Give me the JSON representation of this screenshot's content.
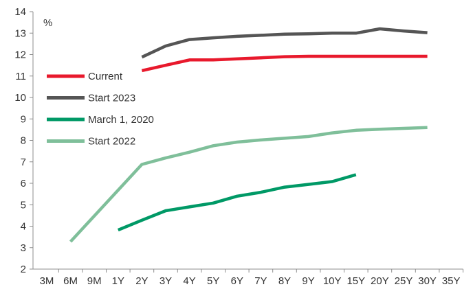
{
  "chart_data": {
    "type": "line",
    "title": "",
    "xlabel": "",
    "ylabel": "%",
    "ylim": [
      2,
      14
    ],
    "y_ticks": [
      2,
      3,
      4,
      5,
      6,
      7,
      8,
      9,
      10,
      11,
      12,
      13,
      14
    ],
    "categories": [
      "3M",
      "6M",
      "9M",
      "1Y",
      "2Y",
      "3Y",
      "4Y",
      "5Y",
      "6Y",
      "7Y",
      "8Y",
      "9Y",
      "10Y",
      "15Y",
      "20Y",
      "25Y",
      "30Y",
      "35Y"
    ],
    "grid": false,
    "legend_position": "left",
    "series": [
      {
        "name": "Current",
        "color": "#e8192c",
        "points": [
          [
            "2Y",
            11.25
          ],
          [
            "3Y",
            11.5
          ],
          [
            "4Y",
            11.75
          ],
          [
            "5Y",
            11.75
          ],
          [
            "6Y",
            11.8
          ],
          [
            "7Y",
            11.85
          ],
          [
            "8Y",
            11.9
          ],
          [
            "9Y",
            11.92
          ],
          [
            "10Y",
            11.92
          ],
          [
            "15Y",
            11.92
          ],
          [
            "20Y",
            11.92
          ],
          [
            "25Y",
            11.92
          ],
          [
            "30Y",
            11.92
          ]
        ]
      },
      {
        "name": "Start 2023",
        "color": "#555555",
        "points": [
          [
            "2Y",
            11.88
          ],
          [
            "3Y",
            12.4
          ],
          [
            "4Y",
            12.7
          ],
          [
            "5Y",
            12.78
          ],
          [
            "6Y",
            12.85
          ],
          [
            "7Y",
            12.9
          ],
          [
            "8Y",
            12.95
          ],
          [
            "9Y",
            12.97
          ],
          [
            "10Y",
            13.0
          ],
          [
            "15Y",
            13.0
          ],
          [
            "20Y",
            13.2
          ],
          [
            "25Y",
            13.1
          ],
          [
            "30Y",
            13.02
          ]
        ]
      },
      {
        "name": "March 1, 2020",
        "color": "#009966",
        "points": [
          [
            "1Y",
            3.82
          ],
          [
            "2Y",
            4.28
          ],
          [
            "3Y",
            4.72
          ],
          [
            "4Y",
            4.9
          ],
          [
            "5Y",
            5.08
          ],
          [
            "6Y",
            5.4
          ],
          [
            "7Y",
            5.58
          ],
          [
            "8Y",
            5.82
          ],
          [
            "9Y",
            5.95
          ],
          [
            "10Y",
            6.08
          ],
          [
            "15Y",
            6.4
          ]
        ]
      },
      {
        "name": "Start 2022",
        "color": "#7fbf9a",
        "points": [
          [
            "6M",
            3.28
          ],
          [
            "2Y",
            6.88
          ],
          [
            "3Y",
            7.18
          ],
          [
            "4Y",
            7.45
          ],
          [
            "5Y",
            7.75
          ],
          [
            "6Y",
            7.92
          ],
          [
            "7Y",
            8.02
          ],
          [
            "8Y",
            8.1
          ],
          [
            "9Y",
            8.18
          ],
          [
            "10Y",
            8.35
          ],
          [
            "15Y",
            8.47
          ],
          [
            "20Y",
            8.52
          ],
          [
            "25Y",
            8.56
          ],
          [
            "30Y",
            8.6
          ]
        ]
      }
    ]
  }
}
